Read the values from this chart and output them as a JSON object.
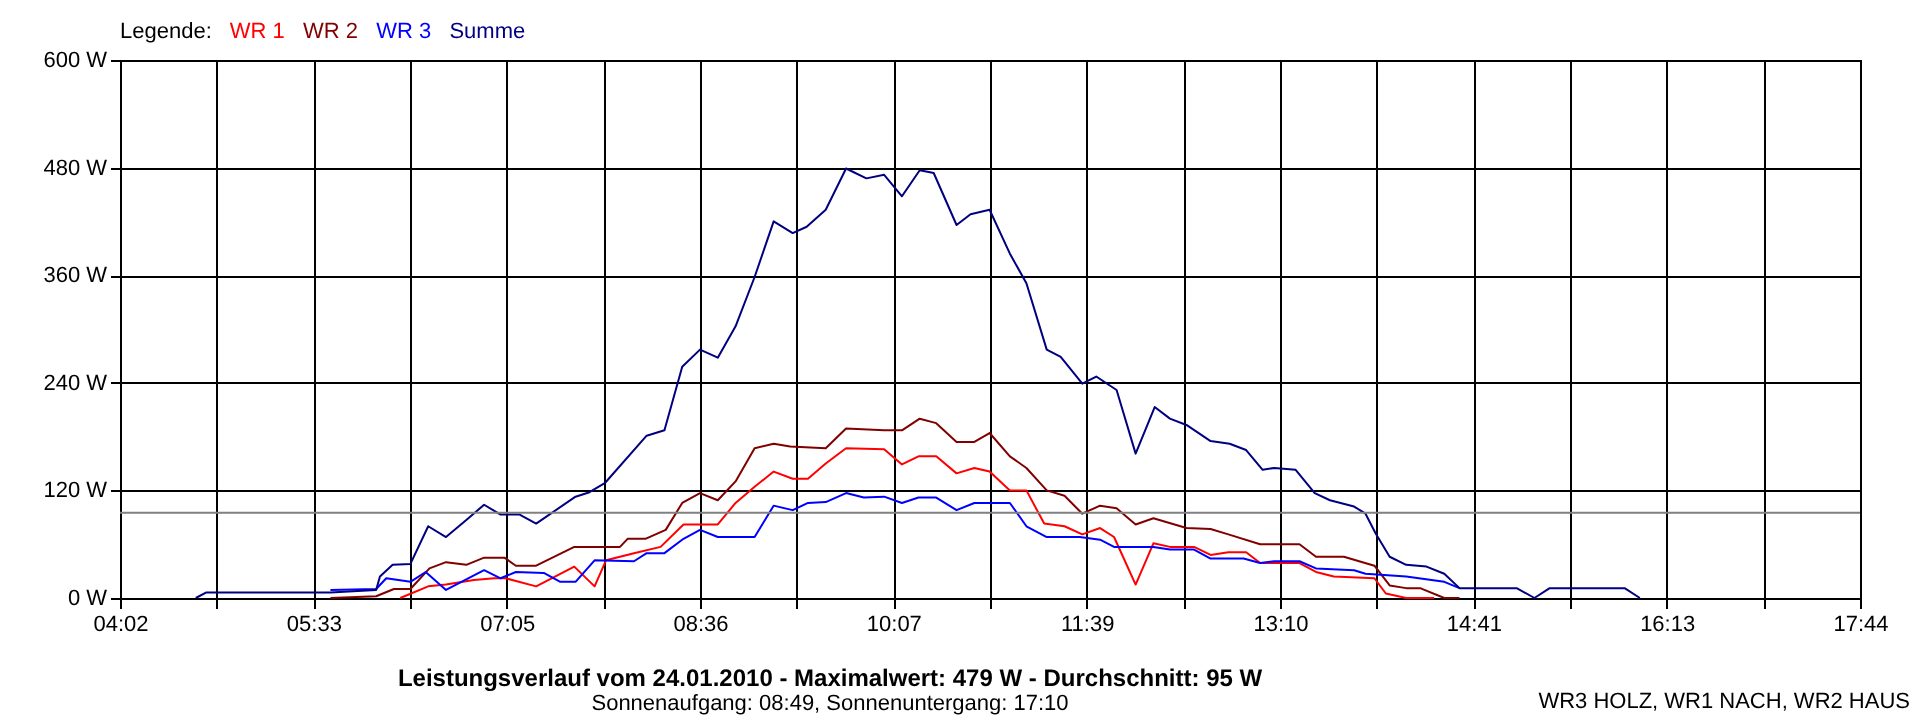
{
  "chart_data": {
    "type": "line",
    "title": "Leistungsverlauf vom 24.01.2010 - Maximalwert: 479 W - Durchschnitt: 95 W",
    "subtitle": "Sonnenaufgang: 08:49, Sonnenuntergang: 17:10",
    "legend_title": "Legende:",
    "legend": "top left",
    "grid": true,
    "line_style": "solid",
    "marker": "none",
    "annotations": [
      "WR3 HOLZ, WR1 NACH, WR2 HAUS"
    ],
    "xlim": [
      4.0333,
      17.7333
    ],
    "xticks": [
      {
        "value": 4.0333,
        "label": "04:02"
      },
      {
        "value": 4.7944,
        "label": null
      },
      {
        "value": 5.5556,
        "label": "05:33"
      },
      {
        "value": 6.3167,
        "label": null
      },
      {
        "value": 7.0778,
        "label": "07:05"
      },
      {
        "value": 7.8389,
        "label": null
      },
      {
        "value": 8.6,
        "label": "08:36"
      },
      {
        "value": 9.3611,
        "label": null
      },
      {
        "value": 10.1222,
        "label": "10:07"
      },
      {
        "value": 10.8833,
        "label": null
      },
      {
        "value": 11.6444,
        "label": "11:39"
      },
      {
        "value": 12.4056,
        "label": null
      },
      {
        "value": 13.1667,
        "label": "13:10"
      },
      {
        "value": 13.9278,
        "label": null
      },
      {
        "value": 14.6889,
        "label": "14:41"
      },
      {
        "value": 15.45,
        "label": null
      },
      {
        "value": 16.2111,
        "label": "16:13"
      },
      {
        "value": 16.9722,
        "label": null
      },
      {
        "value": 17.7333,
        "label": "17:44"
      }
    ],
    "ylim": [
      0,
      600
    ],
    "yticks": [
      {
        "value": 0,
        "label": "0 W"
      },
      {
        "value": 120,
        "label": "120 W"
      },
      {
        "value": 240,
        "label": "240 W"
      },
      {
        "value": 360,
        "label": "360 W"
      },
      {
        "value": 480,
        "label": "480 W"
      },
      {
        "value": 600,
        "label": "600 W"
      }
    ],
    "ref_lines": [
      {
        "axis": "y",
        "value": 95,
        "color": "#808080"
      }
    ],
    "series": [
      {
        "name": "WR 1",
        "color": "#ff0000",
        "x": [
          6.24,
          6.46,
          6.6,
          6.82,
          6.98,
          7.07,
          7.31,
          7.61,
          7.77,
          7.86,
          8.08,
          8.29,
          8.47,
          8.74,
          8.88,
          9.03,
          9.18,
          9.33,
          9.45,
          9.59,
          9.75,
          10.05,
          10.19,
          10.32,
          10.46,
          10.62,
          10.76,
          10.88,
          11.04,
          11.17,
          11.31,
          11.47,
          11.61,
          11.75,
          11.86,
          12.03,
          12.17,
          12.3,
          12.49,
          12.62,
          12.76,
          12.9,
          13.01,
          13.32,
          13.45,
          13.59,
          13.91,
          14.0,
          14.16,
          14.38
        ],
        "values": [
          0,
          13,
          15,
          20,
          22,
          22,
          13,
          35,
          13,
          42,
          50,
          57,
          82,
          82,
          106,
          124,
          141,
          133,
          133,
          150,
          167,
          166,
          149,
          158,
          158,
          139,
          145,
          141,
          120,
          120,
          83,
          80,
          71,
          78,
          68,
          15,
          61,
          57,
          57,
          48,
          51,
          51,
          39,
          39,
          29,
          24,
          22,
          5,
          0,
          0
        ]
      },
      {
        "name": "WR 2",
        "color": "#800000",
        "x": [
          5.69,
          6.05,
          6.19,
          6.32,
          6.47,
          6.6,
          6.76,
          6.9,
          7.06,
          7.15,
          7.31,
          7.61,
          7.97,
          8.03,
          8.17,
          8.33,
          8.46,
          8.6,
          8.74,
          8.88,
          9.03,
          9.18,
          9.31,
          9.59,
          9.75,
          10.05,
          10.19,
          10.33,
          10.46,
          10.62,
          10.76,
          10.88,
          11.04,
          11.17,
          11.33,
          11.47,
          11.61,
          11.75,
          11.88,
          12.03,
          12.17,
          12.43,
          12.62,
          12.76,
          13.01,
          13.32,
          13.45,
          13.67,
          13.91,
          14.03,
          14.16,
          14.27,
          14.46,
          14.58
        ],
        "values": [
          0,
          2,
          10,
          10,
          33,
          40,
          37,
          45,
          45,
          36,
          36,
          57,
          57,
          66,
          66,
          76,
          106,
          117,
          109,
          130,
          167,
          172,
          169,
          167,
          189,
          187,
          187,
          200,
          195,
          174,
          174,
          184,
          158,
          145,
          120,
          114,
          94,
          103,
          100,
          82,
          89,
          78,
          77,
          71,
          60,
          60,
          46,
          46,
          36,
          14,
          11,
          11,
          0,
          0
        ]
      },
      {
        "name": "WR 3",
        "color": "#0000ff",
        "x": [
          5.69,
          6.05,
          6.13,
          6.32,
          6.44,
          6.6,
          6.9,
          7.03,
          7.15,
          7.37,
          7.5,
          7.62,
          7.77,
          8.08,
          8.18,
          8.32,
          8.47,
          8.6,
          8.74,
          9.03,
          9.18,
          9.33,
          9.45,
          9.59,
          9.75,
          9.89,
          10.05,
          10.19,
          10.32,
          10.46,
          10.62,
          10.76,
          11.04,
          11.17,
          11.33,
          11.59,
          11.75,
          11.86,
          12.17,
          12.3,
          12.49,
          12.62,
          12.88,
          13.01,
          13.12,
          13.32,
          13.45,
          13.75,
          13.84,
          14.16,
          14.46,
          14.58
        ],
        "values": [
          9,
          10,
          22,
          18,
          29,
          9,
          31,
          22,
          29,
          28,
          18,
          18,
          42,
          41,
          50,
          50,
          66,
          76,
          68,
          68,
          103,
          98,
          106,
          107,
          117,
          112,
          113,
          106,
          112,
          112,
          98,
          106,
          106,
          80,
          68,
          68,
          65,
          57,
          57,
          54,
          54,
          44,
          44,
          39,
          41,
          41,
          33,
          31,
          27,
          24,
          18,
          11
        ]
      },
      {
        "name": "Summe",
        "color": "#000080",
        "x": [
          4.63,
          4.71,
          5.69,
          6.05,
          6.08,
          6.18,
          6.32,
          6.46,
          6.6,
          6.76,
          6.9,
          7.03,
          7.18,
          7.31,
          7.62,
          7.73,
          7.85,
          8.18,
          8.32,
          8.46,
          8.6,
          8.74,
          8.88,
          9.03,
          9.18,
          9.33,
          9.44,
          9.59,
          9.75,
          9.91,
          10.05,
          10.19,
          10.33,
          10.44,
          10.62,
          10.73,
          10.88,
          11.04,
          11.17,
          11.33,
          11.44,
          11.61,
          11.72,
          11.88,
          12.03,
          12.18,
          12.3,
          12.43,
          12.62,
          12.77,
          12.9,
          13.03,
          13.12,
          13.29,
          13.44,
          13.56,
          13.75,
          13.84,
          13.92,
          14.03,
          14.16,
          14.32,
          14.46,
          14.58,
          15.03,
          15.17,
          15.29,
          15.5,
          15.88,
          16.0
        ],
        "values": [
          0,
          6,
          6,
          9,
          24,
          37,
          38,
          80,
          68,
          87,
          104,
          93,
          93,
          83,
          113,
          118,
          128,
          181,
          187,
          258,
          277,
          268,
          303,
          358,
          420,
          407,
          414,
          433,
          479,
          468,
          472,
          448,
          477,
          474,
          416,
          428,
          433,
          384,
          351,
          277,
          269,
          239,
          247,
          232,
          161,
          213,
          200,
          193,
          175,
          172,
          165,
          143,
          145,
          143,
          117,
          109,
          102,
          94,
          72,
          46,
          37,
          35,
          27,
          11,
          11,
          0,
          11,
          11,
          11,
          0
        ]
      }
    ]
  }
}
